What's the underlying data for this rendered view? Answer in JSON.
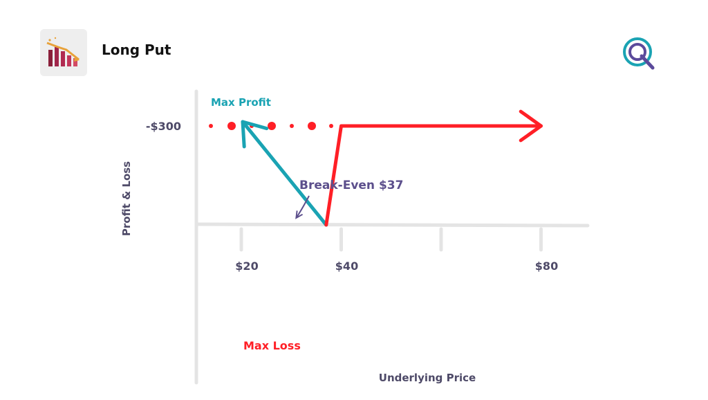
{
  "header": {
    "title": "Long Put",
    "app_icon": "bear-market-chart-icon",
    "brand_logo": "q-logo-icon"
  },
  "colors": {
    "profit": "#1aa3b3",
    "loss": "#ff1f26",
    "axis": "#e4e4e4",
    "text": "#4e4a68",
    "annotation": "#5c4f8c",
    "logo_primary": "#1aa3b3",
    "logo_secondary": "#5b4a9b"
  },
  "chart_data": {
    "type": "line",
    "xlabel": "Underlying Price",
    "ylabel": "Profit & Loss",
    "x_ticks": [
      {
        "value": 20,
        "label": "$20"
      },
      {
        "value": 40,
        "label": "$40"
      },
      {
        "value": 60,
        "label": ""
      },
      {
        "value": 80,
        "label": "$80"
      }
    ],
    "y_ticks": [
      {
        "value": -300,
        "label": "-$300"
      }
    ],
    "series": [
      {
        "role": "profit",
        "points": [
          [
            37,
            0
          ],
          [
            27,
            1000
          ]
        ]
      },
      {
        "role": "loss",
        "points": [
          [
            37,
            0
          ],
          [
            40,
            -300
          ],
          [
            80,
            -300
          ]
        ]
      }
    ],
    "reference_lines": [
      {
        "role": "max-loss-dots",
        "y": -300,
        "x_from": 8,
        "x_to": 40
      }
    ],
    "annotations": {
      "max_profit": "Max Profit",
      "break_even": "Break-Even $37",
      "max_loss": "Max Loss"
    }
  }
}
